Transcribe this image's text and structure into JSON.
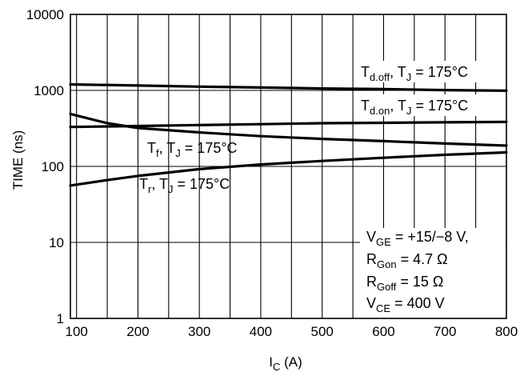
{
  "chart_data": {
    "type": "line",
    "xlabel": "I",
    "xlabel_sub": "C",
    "xlabel_unit": " (A)",
    "ylabel": "TIME (ns)",
    "xlim": [
      90,
      800
    ],
    "ylim": [
      1,
      10000
    ],
    "yscale": "log",
    "grid": true,
    "x_ticks": [
      100,
      200,
      300,
      400,
      500,
      600,
      700,
      800
    ],
    "x_tick_labels": [
      "100",
      "200",
      "300",
      "400",
      "500",
      "600",
      "700",
      "800"
    ],
    "y_ticks": [
      1,
      10,
      100,
      1000,
      10000
    ],
    "y_tick_labels": [
      "1",
      "10",
      "100",
      "1000",
      "10000"
    ],
    "series": [
      {
        "name": "Td.off, TJ = 175°C",
        "label_parts": [
          "T",
          "d.off",
          ", T",
          "J",
          " = 175°C"
        ],
        "x": [
          90,
          200,
          300,
          400,
          500,
          600,
          700,
          800
        ],
        "y": [
          1200,
          1160,
          1120,
          1090,
          1060,
          1040,
          1010,
          990
        ]
      },
      {
        "name": "Td.on, TJ = 175°C",
        "label_parts": [
          "T",
          "d.on",
          ", T",
          "J",
          " = 175°C"
        ],
        "x": [
          90,
          200,
          300,
          400,
          500,
          600,
          700,
          800
        ],
        "y": [
          330,
          340,
          350,
          360,
          370,
          375,
          380,
          385
        ]
      },
      {
        "name": "Tf, TJ = 175°C",
        "label_parts": [
          "T",
          "f",
          ", T",
          "J",
          " = 175°C"
        ],
        "x": [
          90,
          150,
          200,
          300,
          400,
          500,
          600,
          700,
          800
        ],
        "y": [
          490,
          370,
          320,
          280,
          250,
          230,
          215,
          200,
          188
        ]
      },
      {
        "name": "Tr, TJ = 175°C",
        "label_parts": [
          "T",
          "r",
          ", T",
          "J",
          " = 175°C"
        ],
        "x": [
          90,
          150,
          200,
          300,
          400,
          500,
          600,
          700,
          800
        ],
        "y": [
          56,
          66,
          75,
          92,
          106,
          118,
          130,
          142,
          153
        ]
      }
    ],
    "conditions": [
      [
        "V",
        "GE",
        " = +15/−8 V,"
      ],
      [
        "R",
        "Gon",
        " = 4.7 Ω"
      ],
      [
        "R",
        "Goff",
        " = 15 Ω"
      ],
      [
        "V",
        "CE",
        " = 400 V"
      ]
    ]
  }
}
